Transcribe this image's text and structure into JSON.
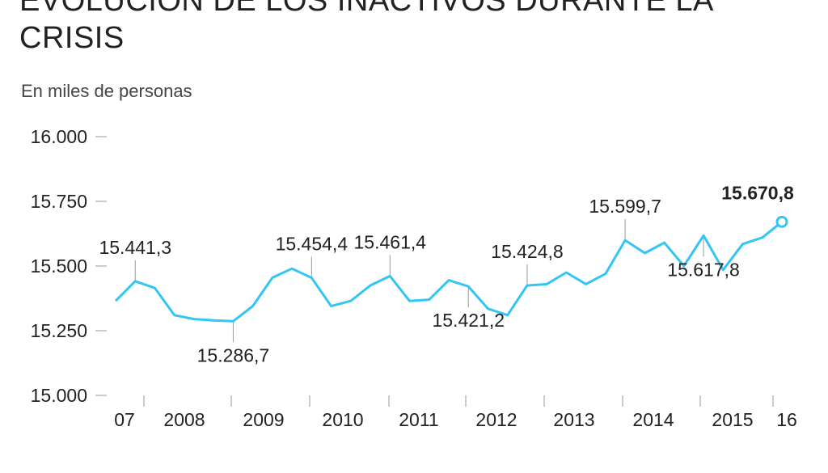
{
  "chart_data": {
    "type": "line",
    "title": "EVOLUCIÓN DE LOS INACTIVOS DURANTE LA CRISIS",
    "subtitle": "En miles de personas",
    "ylim": [
      15000,
      16000
    ],
    "y_ticks": [
      "16.000",
      "15.750",
      "15.500",
      "15.250",
      "15.000"
    ],
    "y_tick_values": [
      16000,
      15750,
      15500,
      15250,
      15000
    ],
    "x_tick_labels": [
      "07",
      "2008",
      "2009",
      "2010",
      "2011",
      "2012",
      "2013",
      "2014",
      "2015",
      "16"
    ],
    "grid": false,
    "line_color": "#33c5f3",
    "series": [
      {
        "values": [
          15365,
          15441.3,
          15415,
          15310,
          15295,
          15290,
          15286.7,
          15345,
          15455,
          15490,
          15454.4,
          15345,
          15365,
          15425,
          15461.4,
          15365,
          15370,
          15445,
          15421.2,
          15335,
          15310,
          15424.8,
          15430,
          15475,
          15430,
          15470,
          15599.7,
          15550,
          15590,
          15500,
          15617.8,
          15485,
          15585,
          15610,
          15670.8
        ]
      }
    ],
    "annotations": [
      {
        "index": 1,
        "label": "15.441,3",
        "position": "above"
      },
      {
        "index": 6,
        "label": "15.286,7",
        "position": "below"
      },
      {
        "index": 10,
        "label": "15.454,4",
        "position": "above"
      },
      {
        "index": 14,
        "label": "15.461,4",
        "position": "above"
      },
      {
        "index": 18,
        "label": "15.421,2",
        "position": "below"
      },
      {
        "index": 21,
        "label": "15.424,8",
        "position": "above"
      },
      {
        "index": 26,
        "label": "15.599,7",
        "position": "above"
      },
      {
        "index": 30,
        "label": "15.617,8",
        "position": "below"
      },
      {
        "index": 34,
        "label": "15.670,8",
        "position": "above",
        "bold": true
      }
    ]
  }
}
